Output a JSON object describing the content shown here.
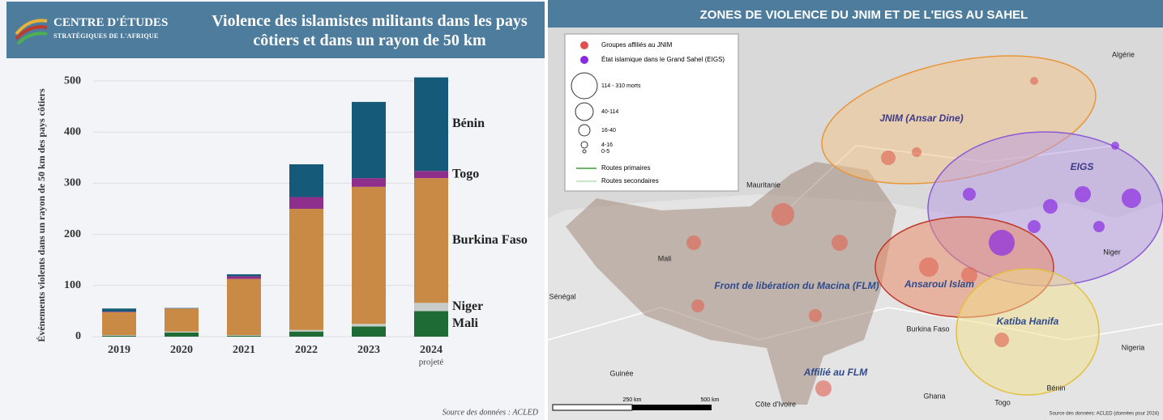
{
  "logo": {
    "line1": "CENTRE D'ÉTUDES",
    "line2": "STRATÉGIQUES DE L'AFRIQUE"
  },
  "chart_data": {
    "type": "bar",
    "stacked": true,
    "title": "Violence des islamistes militants dans les pays côtiers et dans un rayon de 50 km",
    "y_label": "Événements violents dans un rayon de 50 km des pays côtiers",
    "categories": [
      "2019",
      "2020",
      "2021",
      "2022",
      "2023",
      "2024"
    ],
    "annotation": "projeté",
    "series": [
      {
        "name": "Mali",
        "color": "#1e6b35",
        "values": [
          2,
          8,
          2,
          10,
          20,
          50
        ]
      },
      {
        "name": "Niger",
        "color": "#c8ccc8",
        "values": [
          1,
          2,
          1,
          3,
          5,
          16
        ]
      },
      {
        "name": "Burkina Faso",
        "color": "#c98a45",
        "values": [
          45,
          45,
          110,
          237,
          268,
          244
        ]
      },
      {
        "name": "Togo",
        "color": "#8e2f8c",
        "values": [
          1,
          0,
          5,
          23,
          17,
          14
        ]
      },
      {
        "name": "Bénin",
        "color": "#155a78",
        "values": [
          6,
          1,
          4,
          64,
          149,
          183
        ]
      }
    ],
    "ylim": [
      0,
      520
    ],
    "yticks": [
      0,
      100,
      200,
      300,
      400,
      500
    ],
    "grid": true,
    "source": "Source des données : ACLED"
  },
  "map": {
    "title": "ZONES DE VIOLENCE DU JNIM ET DE L'EIGS AU SAHEL",
    "legend": [
      "Groupes affiliés au JNIM",
      "État islamique dans le Grand Sahel (EIGS)"
    ],
    "size_legend": [
      "114 - 310 morts",
      "40-114",
      "16-40",
      "4-16",
      "0-5"
    ],
    "roads": [
      "Routes primaires",
      "Routes secondaires"
    ],
    "countries": [
      "Algérie",
      "Mauritanie",
      "Mali",
      "Niger",
      "Sénégal",
      "Burkina Faso",
      "Nigeria",
      "Guinée",
      "Côte d'Ivoire",
      "Ghana",
      "Togo",
      "Bénin"
    ],
    "zones": [
      "JNIM (Ansar Dine)",
      "EIGS",
      "Front de libération du Macina (FLM)",
      "Ansaroul Islam",
      "Katiba Hanifa",
      "Affilié au FLM"
    ],
    "scale": [
      "250 km",
      "500 km"
    ],
    "source": "Source des données: ACLED (données pour 2024)"
  }
}
